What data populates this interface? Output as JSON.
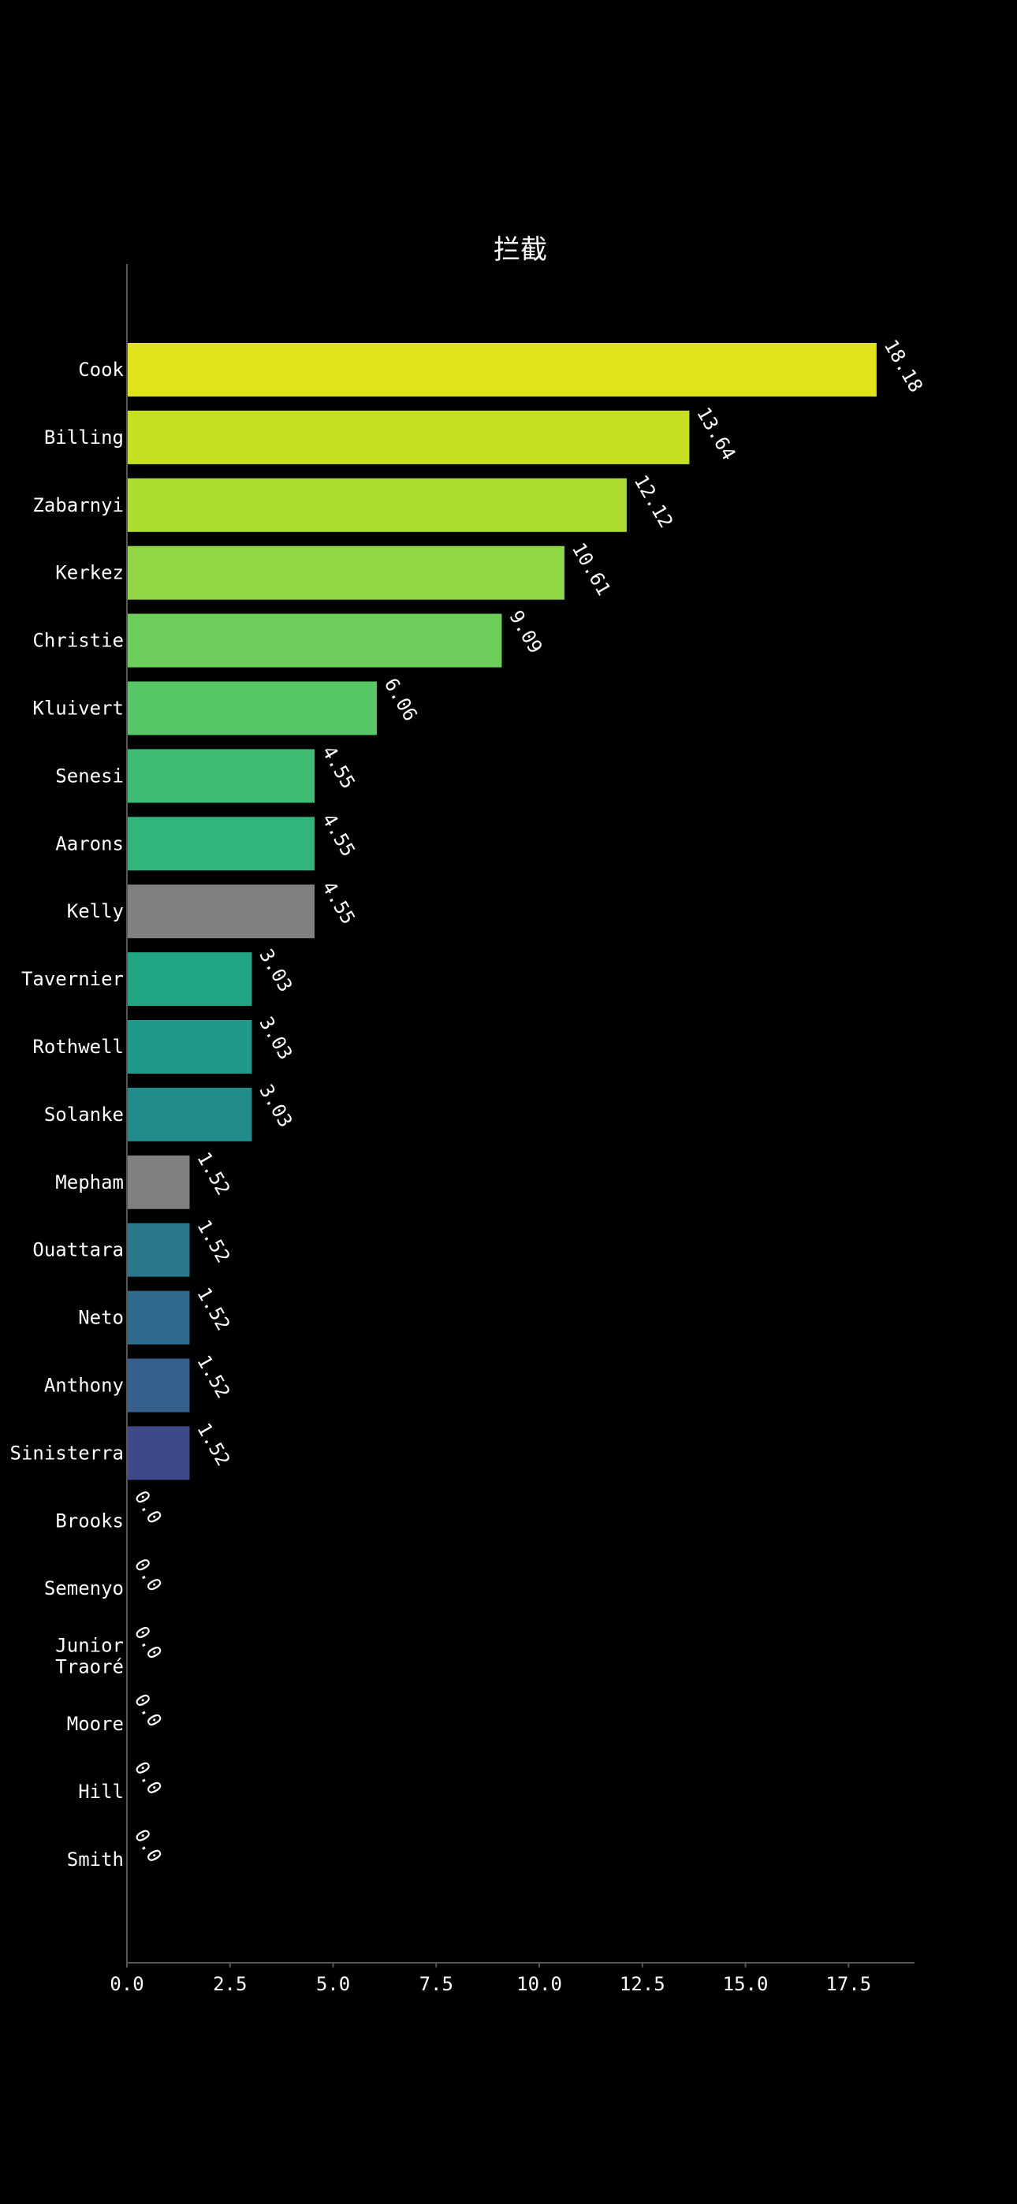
{
  "chart_data": {
    "type": "bar",
    "orientation": "horizontal",
    "title": "拦截",
    "xlabel": "",
    "ylabel": "",
    "xlim": [
      0,
      19.1
    ],
    "xticks": [
      0.0,
      2.5,
      5.0,
      7.5,
      10.0,
      12.5,
      15.0,
      17.5
    ],
    "xtick_labels": [
      "0.0",
      "2.5",
      "5.0",
      "7.5",
      "10.0",
      "12.5",
      "15.0",
      "17.5"
    ],
    "grid": false,
    "background": "#000000",
    "categories": [
      [
        "Cook"
      ],
      [
        "Billing"
      ],
      [
        "Zabarnyi"
      ],
      [
        "Kerkez"
      ],
      [
        "Christie"
      ],
      [
        "Kluivert"
      ],
      [
        "Senesi"
      ],
      [
        "Aarons"
      ],
      [
        "Kelly"
      ],
      [
        "Tavernier"
      ],
      [
        "Rothwell"
      ],
      [
        "Solanke"
      ],
      [
        "Mepham"
      ],
      [
        "Ouattara"
      ],
      [
        "Neto"
      ],
      [
        "Anthony"
      ],
      [
        "Sinisterra"
      ],
      [
        "Brooks"
      ],
      [
        "Semenyo"
      ],
      [
        "Junior",
        "Traoré"
      ],
      [
        "Moore"
      ],
      [
        "Hill"
      ],
      [
        "Smith"
      ]
    ],
    "values": [
      18.18,
      13.64,
      12.12,
      10.61,
      9.09,
      6.06,
      4.55,
      4.55,
      4.55,
      3.03,
      3.03,
      3.03,
      1.52,
      1.52,
      1.52,
      1.52,
      1.52,
      0.0,
      0.0,
      0.0,
      0.0,
      0.0,
      0.0
    ],
    "value_labels": [
      "18.18",
      "13.64",
      "12.12",
      "10.61",
      "9.09",
      "6.06",
      "4.55",
      "4.55",
      "4.55",
      "3.03",
      "3.03",
      "3.03",
      "1.52",
      "1.52",
      "1.52",
      "1.52",
      "1.52",
      "0.0",
      "0.0",
      "0.0",
      "0.0",
      "0.0",
      "0.0"
    ],
    "colors": [
      "#e1e31a",
      "#c5e021",
      "#addc30",
      "#8fd744",
      "#6ccd5a",
      "#56c667",
      "#3fbc73",
      "#31b57b",
      "#808080",
      "#21a585",
      "#1f9a8a",
      "#228c8d",
      "#808080",
      "#2a788e",
      "#30698e",
      "#355f8d",
      "#3f4889",
      "#47307e",
      "#482173",
      "#481a6c",
      "#481467",
      "#471063",
      "#440154"
    ]
  }
}
